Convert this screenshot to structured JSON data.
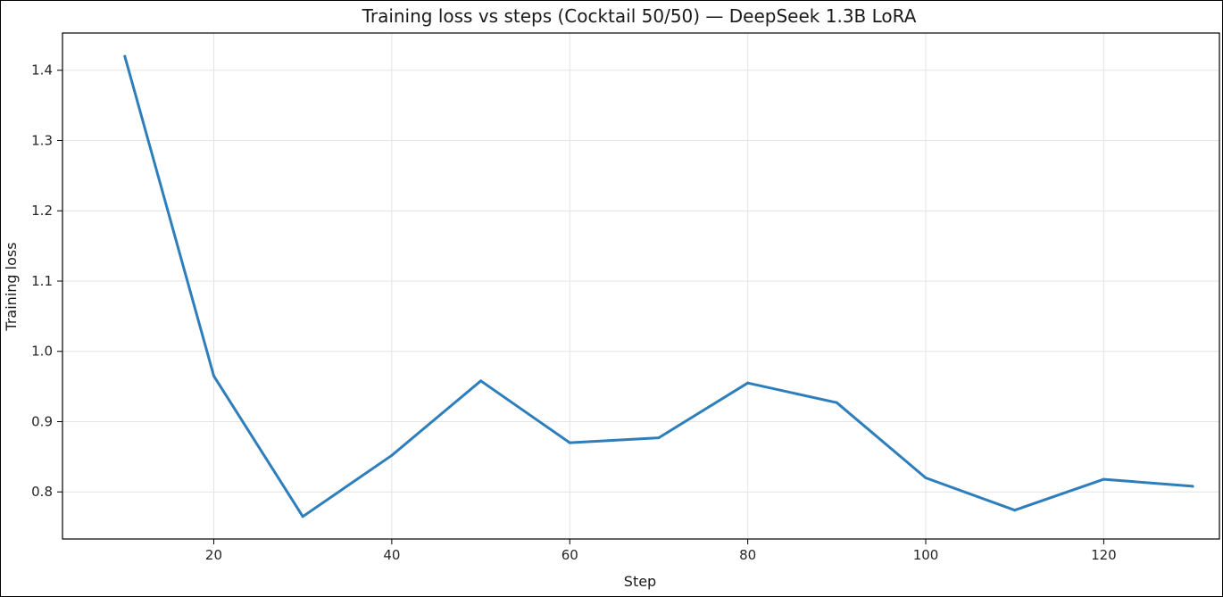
{
  "chart_data": {
    "type": "line",
    "title": "Training loss vs steps (Cocktail 50/50) — DeepSeek 1.3B LoRA",
    "xlabel": "Step",
    "ylabel": "Training loss",
    "xlim": [
      3,
      133
    ],
    "ylim": [
      0.733,
      1.453
    ],
    "xticks": [
      20,
      40,
      60,
      80,
      100,
      120
    ],
    "yticks": [
      0.8,
      0.9,
      1.0,
      1.1,
      1.2,
      1.3,
      1.4
    ],
    "xtick_labels": [
      "20",
      "40",
      "60",
      "80",
      "100",
      "120"
    ],
    "ytick_labels": [
      "0.8",
      "0.9",
      "1.0",
      "1.1",
      "1.2",
      "1.3",
      "1.4"
    ],
    "grid": true,
    "legend": false,
    "series": [
      {
        "color": "#2e7ebc",
        "x": [
          10,
          20,
          30,
          40,
          50,
          60,
          70,
          80,
          90,
          100,
          110,
          120,
          130
        ],
        "y": [
          1.42,
          0.965,
          0.765,
          0.852,
          0.958,
          0.87,
          0.877,
          0.955,
          0.927,
          0.82,
          0.774,
          0.818,
          0.808
        ]
      }
    ]
  }
}
